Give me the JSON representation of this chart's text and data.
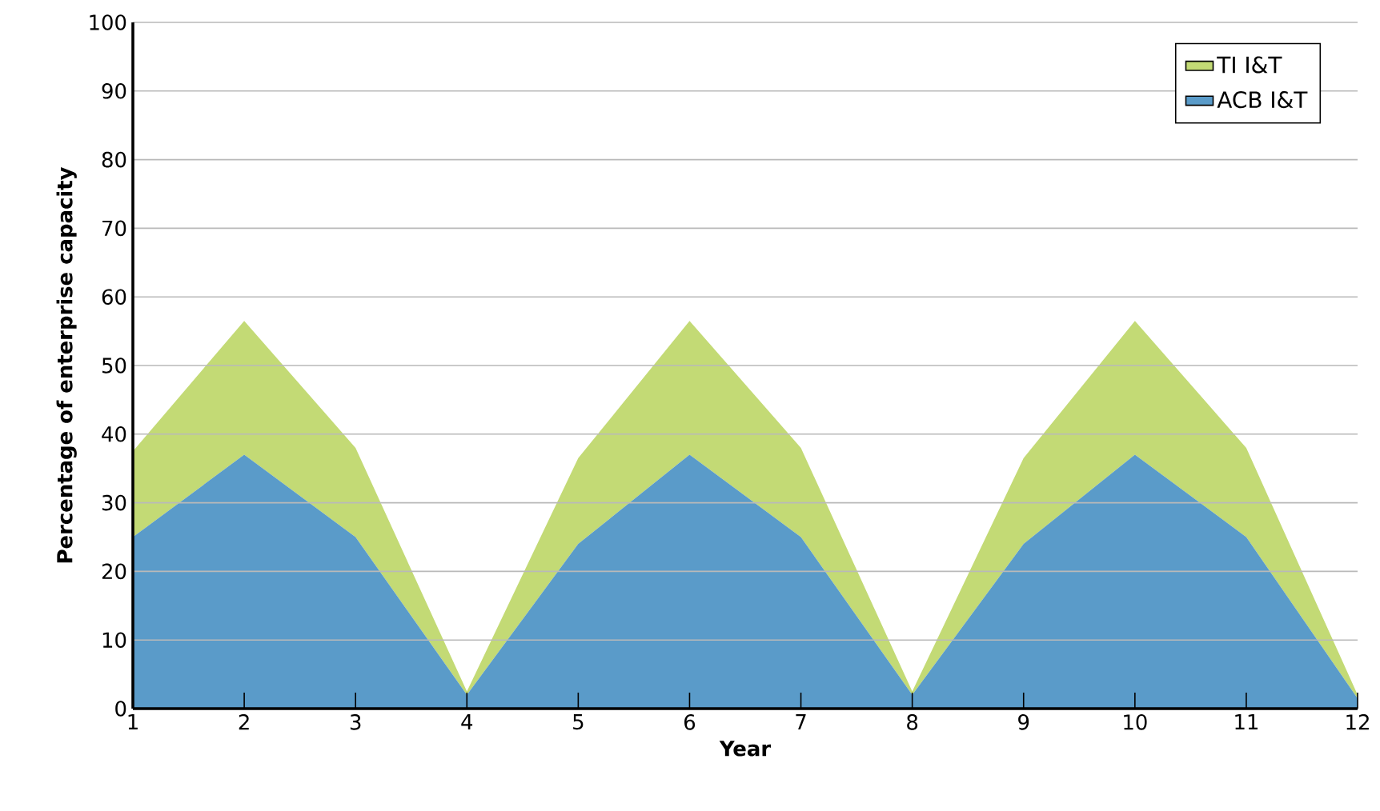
{
  "chart_data": {
    "type": "area",
    "stacked": true,
    "xlabel": "Year",
    "ylabel": "Percentage of enterprise capacity",
    "x": [
      1,
      2,
      3,
      4,
      5,
      6,
      7,
      8,
      9,
      10,
      11,
      12
    ],
    "series": [
      {
        "name": "ACB I&T",
        "color": "#5a9bc9",
        "values": [
          25,
          37,
          25,
          2,
          24,
          37,
          25,
          2,
          24,
          37,
          25,
          1.5
        ]
      },
      {
        "name": "TI I&T",
        "color": "#c3da75",
        "values": [
          12.5,
          19.5,
          13,
          0.5,
          12.5,
          19.5,
          13,
          0.5,
          12.5,
          19.5,
          13,
          0.5
        ]
      }
    ],
    "xlim": [
      1,
      12
    ],
    "xticks": [
      1,
      2,
      3,
      4,
      5,
      6,
      7,
      8,
      9,
      10,
      11,
      12
    ],
    "ylim": [
      0,
      100
    ],
    "yticks": [
      0,
      10,
      20,
      30,
      40,
      50,
      60,
      70,
      80,
      90,
      100
    ],
    "grid": "y",
    "legend": "top right"
  }
}
